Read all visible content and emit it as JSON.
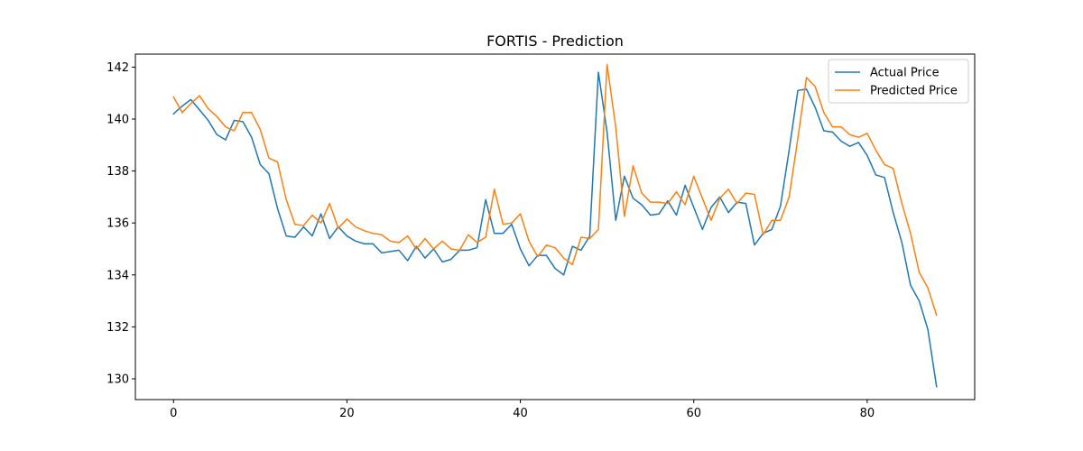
{
  "chart_data": {
    "type": "line",
    "title": "FORTIS - Prediction",
    "xlabel": "",
    "ylabel": "",
    "xlim": [
      -4.4,
      92.4
    ],
    "ylim": [
      129.2,
      142.5
    ],
    "xticks": [
      0,
      20,
      40,
      60,
      80
    ],
    "yticks": [
      130,
      132,
      134,
      136,
      138,
      140,
      142
    ],
    "grid": false,
    "legend_position": "top-right",
    "series": [
      {
        "name": "Actual Price",
        "color": "#1f77b4",
        "values": [
          140.2,
          140.5,
          140.75,
          140.35,
          139.95,
          139.4,
          139.2,
          139.95,
          139.9,
          139.3,
          138.25,
          137.9,
          136.55,
          135.5,
          135.45,
          135.85,
          135.5,
          136.35,
          135.4,
          135.85,
          135.5,
          135.3,
          135.2,
          135.2,
          134.85,
          134.9,
          134.95,
          134.55,
          135.1,
          134.65,
          135.0,
          134.5,
          134.6,
          134.95,
          134.95,
          135.05,
          136.9,
          135.6,
          135.6,
          135.95,
          135.0,
          134.35,
          134.75,
          134.75,
          134.25,
          134.0,
          135.1,
          134.95,
          135.5,
          141.8,
          139.5,
          136.1,
          137.8,
          136.95,
          136.7,
          136.3,
          136.35,
          136.85,
          136.3,
          137.45,
          136.6,
          135.75,
          136.6,
          137.0,
          136.4,
          136.8,
          136.75,
          135.15,
          135.6,
          135.75,
          136.65,
          138.8,
          141.1,
          141.15,
          140.45,
          139.55,
          139.5,
          139.15,
          138.95,
          139.1,
          138.6,
          137.85,
          137.75,
          136.4,
          135.25,
          133.6,
          133.0,
          131.9,
          129.7
        ]
      },
      {
        "name": "Predicted Price",
        "color": "#ff7f0e",
        "values": [
          140.85,
          140.25,
          140.6,
          140.9,
          140.4,
          140.1,
          139.7,
          139.55,
          140.25,
          140.25,
          139.6,
          138.5,
          138.35,
          136.9,
          135.95,
          135.9,
          136.3,
          136.0,
          136.75,
          135.8,
          136.15,
          135.85,
          135.7,
          135.6,
          135.55,
          135.3,
          135.25,
          135.5,
          135.0,
          135.4,
          135.0,
          135.3,
          135.0,
          134.95,
          135.55,
          135.25,
          135.45,
          137.3,
          135.95,
          136.0,
          136.35,
          135.3,
          134.7,
          135.15,
          135.05,
          134.65,
          134.4,
          135.45,
          135.4,
          135.75,
          142.1,
          139.7,
          136.25,
          138.2,
          137.15,
          136.8,
          136.8,
          136.75,
          137.2,
          136.7,
          137.8,
          136.95,
          136.1,
          136.95,
          137.3,
          136.75,
          137.15,
          137.1,
          135.55,
          136.1,
          136.1,
          137.0,
          139.25,
          141.6,
          141.25,
          140.25,
          139.7,
          139.7,
          139.4,
          139.3,
          139.45,
          138.8,
          138.25,
          138.1,
          136.75,
          135.6,
          134.1,
          133.5,
          132.45
        ]
      }
    ]
  }
}
